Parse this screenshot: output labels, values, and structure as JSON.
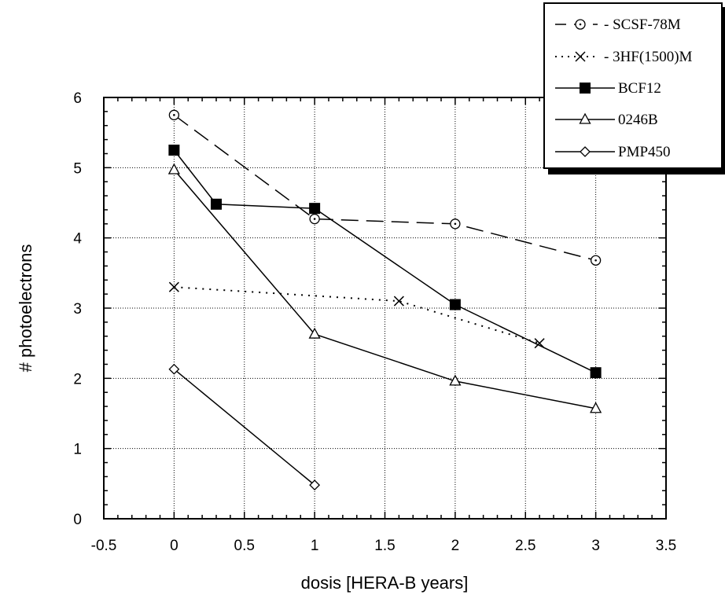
{
  "chart_data": {
    "type": "line",
    "xlabel": "dosis [HERA-B years]",
    "ylabel": "# photoelectrons",
    "xlim": [
      -0.5,
      3.5
    ],
    "ylim": [
      0,
      6
    ],
    "x_ticks": [
      -0.5,
      0,
      0.5,
      1,
      1.5,
      2,
      2.5,
      3,
      3.5
    ],
    "y_ticks": [
      0,
      1,
      2,
      3,
      4,
      5,
      6
    ],
    "x_tick_labels": [
      "-0.5",
      "0",
      "0.5",
      "1",
      "1.5",
      "2",
      "2.5",
      "3",
      "3.5"
    ],
    "y_tick_labels": [
      "0",
      "1",
      "2",
      "3",
      "4",
      "5",
      "6"
    ],
    "grid": true,
    "legend_position": "top-right",
    "series": [
      {
        "name": "SCSF-78M",
        "line_style": "dashed",
        "marker": "circle-dot",
        "x": [
          0,
          1,
          2,
          3
        ],
        "y": [
          5.75,
          4.27,
          4.2,
          3.68
        ]
      },
      {
        "name": "3HF(1500)M",
        "line_style": "dotted",
        "marker": "x",
        "x": [
          0,
          1.6,
          2.6
        ],
        "y": [
          3.3,
          3.1,
          2.5
        ]
      },
      {
        "name": "BCF12",
        "line_style": "solid",
        "marker": "filled-square",
        "x": [
          0,
          0.3,
          1,
          2,
          3
        ],
        "y": [
          5.25,
          4.48,
          4.42,
          3.05,
          2.08
        ]
      },
      {
        "name": "0246B",
        "line_style": "solid",
        "marker": "triangle",
        "x": [
          0,
          1,
          2,
          3
        ],
        "y": [
          4.97,
          2.63,
          1.96,
          1.57
        ]
      },
      {
        "name": "PMP450",
        "line_style": "solid",
        "marker": "diamond",
        "x": [
          0,
          1
        ],
        "y": [
          2.13,
          0.48
        ]
      }
    ]
  },
  "legend": {
    "items": [
      {
        "label": "- SCSF-78M"
      },
      {
        "label": "- 3HF(1500)M"
      },
      {
        "label": "BCF12"
      },
      {
        "label": "0246B"
      },
      {
        "label": "PMP450"
      }
    ]
  }
}
